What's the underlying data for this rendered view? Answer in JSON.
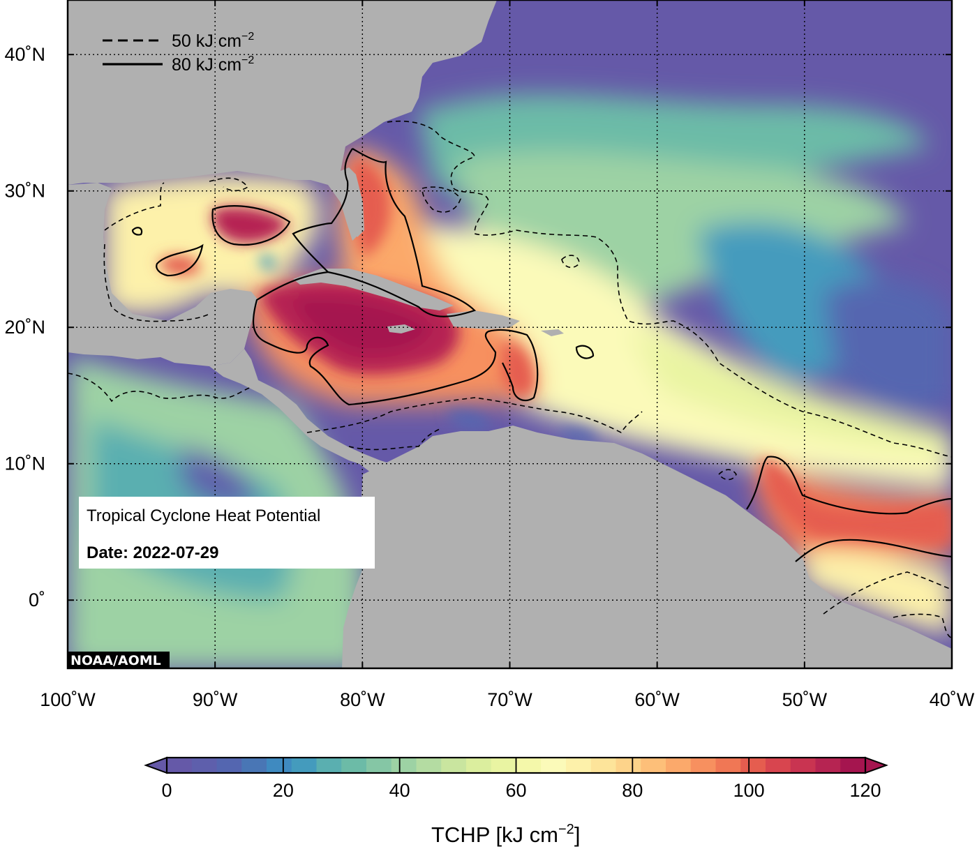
{
  "map": {
    "lon_labels": [
      {
        "lon": -100,
        "label": "100˚W"
      },
      {
        "lon": -90,
        "label": "90˚W"
      },
      {
        "lon": -80,
        "label": "80˚W"
      },
      {
        "lon": -70,
        "label": "70˚W"
      },
      {
        "lon": -60,
        "label": "60˚W"
      },
      {
        "lon": -50,
        "label": "50˚W"
      },
      {
        "lon": -40,
        "label": "40˚W"
      }
    ],
    "lat_labels": [
      {
        "lat": 40,
        "label": "40˚N"
      },
      {
        "lat": 30,
        "label": "30˚N"
      },
      {
        "lat": 20,
        "label": "20˚N"
      },
      {
        "lat": 10,
        "label": "10˚N"
      },
      {
        "lat": 0,
        "label": "0˚"
      }
    ],
    "lon_range": [
      -100,
      -40
    ],
    "lat_range": [
      -5,
      44
    ],
    "grid": true,
    "land_color": "#b0b0b0",
    "ocean_cold_color": "#6559a8"
  },
  "legend": {
    "dashed_label": "50 kJ cm",
    "solid_label": "80 kJ cm",
    "exponent": "−2"
  },
  "info_box": {
    "title": "Tropical Cyclone Heat Potential",
    "date": "Date: 2022-07-29"
  },
  "credit": "NOAA/AOML",
  "colorbar": {
    "min": 0,
    "max": 120,
    "tick_values": [
      0,
      20,
      40,
      60,
      80,
      100,
      120
    ],
    "tick_labels": [
      "0",
      "20",
      "40",
      "60",
      "80",
      "100",
      "120"
    ],
    "title_main": "TCHP [kJ cm",
    "title_exp": "−2",
    "title_end": "]",
    "colors": [
      "#6559a8",
      "#5e5fac",
      "#5466b0",
      "#4976b5",
      "#3f8ac0",
      "#449bbd",
      "#5aafb0",
      "#6cbba7",
      "#85c6a5",
      "#9dd2a4",
      "#b4dca2",
      "#c9e59f",
      "#dbee9e",
      "#e9f4a2",
      "#f4f8aa",
      "#fbfab9",
      "#fdf1aa",
      "#fde49a",
      "#fdd38a",
      "#fdbf79",
      "#fba96b",
      "#f7905f",
      "#f07755",
      "#e55d4f",
      "#d8454f",
      "#c93451",
      "#b62452",
      "#a5154f"
    ]
  }
}
